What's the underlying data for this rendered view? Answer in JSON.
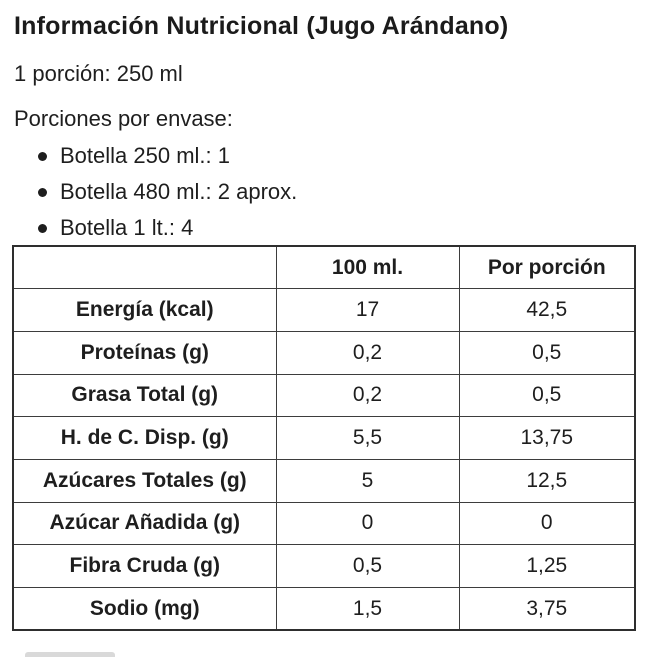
{
  "header": {
    "title": "Información Nutricional (Jugo Arándano)"
  },
  "intro": {
    "serving_size": "1 porción: 250 ml",
    "servings_label": "Porciones por envase:",
    "bullets": [
      "Botella 250 ml.: 1",
      "Botella 480 ml.: 2 aprox.",
      "Botella 1 lt.: 4"
    ]
  },
  "table": {
    "headers": [
      "",
      "100 ml.",
      "Por porción"
    ],
    "rows": [
      {
        "label": "Energía (kcal)",
        "per_100ml": "17",
        "per_portion": "42,5"
      },
      {
        "label": "Proteínas (g)",
        "per_100ml": "0,2",
        "per_portion": "0,5"
      },
      {
        "label": "Grasa Total (g)",
        "per_100ml": "0,2",
        "per_portion": "0,5"
      },
      {
        "label": "H. de C. Disp. (g)",
        "per_100ml": "5,5",
        "per_portion": "13,75"
      },
      {
        "label": "Azúcares Totales (g)",
        "per_100ml": "5",
        "per_portion": "12,5"
      },
      {
        "label": "Azúcar Añadida (g)",
        "per_100ml": "0",
        "per_portion": "0"
      },
      {
        "label": "Fibra Cruda (g)",
        "per_100ml": "0,5",
        "per_portion": "1,25"
      },
      {
        "label": "Sodio (mg)",
        "per_100ml": "1,5",
        "per_portion": "3,75"
      }
    ]
  },
  "colors": {
    "text": "#1e1e1e",
    "table_border": "#3d3d3d",
    "background": "#ffffff",
    "bottom_fragment": "#d9d9d9"
  }
}
